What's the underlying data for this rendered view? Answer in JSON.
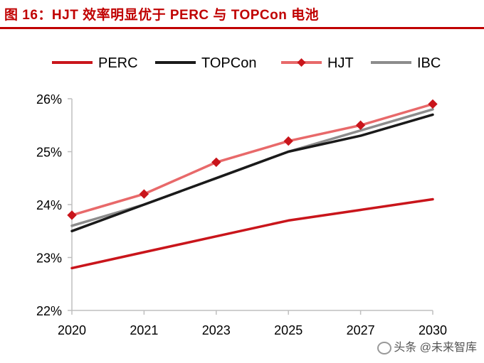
{
  "figure": {
    "title": "图 16：HJT 效率明显优于 PERC 与 TOPCon 电池",
    "watermark": "头条 @未来智库"
  },
  "colors": {
    "title": "#c00000",
    "PERC": "#c9151b",
    "TOPCon": "#1a1a1a",
    "HJT": "#e8696a",
    "HJT_marker": "#c9151b",
    "IBC": "#8c8c8c",
    "axis": "#bfbfbf"
  },
  "chart_data": {
    "type": "line",
    "title": "",
    "xlabel": "",
    "ylabel": "",
    "categories": [
      "2020",
      "2021",
      "2023",
      "2025",
      "2027",
      "2030"
    ],
    "yticks": [
      "22%",
      "23%",
      "24%",
      "25%",
      "26%"
    ],
    "ylim": [
      22,
      26.2
    ],
    "y_unit": "%",
    "grid": false,
    "legend": "top",
    "series": [
      {
        "name": "PERC",
        "values": [
          22.8,
          23.1,
          23.4,
          23.7,
          23.9,
          24.1
        ],
        "marker": "none"
      },
      {
        "name": "TOPCon",
        "values": [
          23.5,
          24.0,
          24.5,
          25.0,
          25.3,
          25.7
        ],
        "marker": "none"
      },
      {
        "name": "HJT",
        "values": [
          23.8,
          24.2,
          24.8,
          25.2,
          25.5,
          25.9
        ],
        "marker": "diamond"
      },
      {
        "name": "IBC",
        "values": [
          23.6,
          24.0,
          24.5,
          25.0,
          25.4,
          25.8
        ],
        "marker": "none"
      }
    ]
  }
}
